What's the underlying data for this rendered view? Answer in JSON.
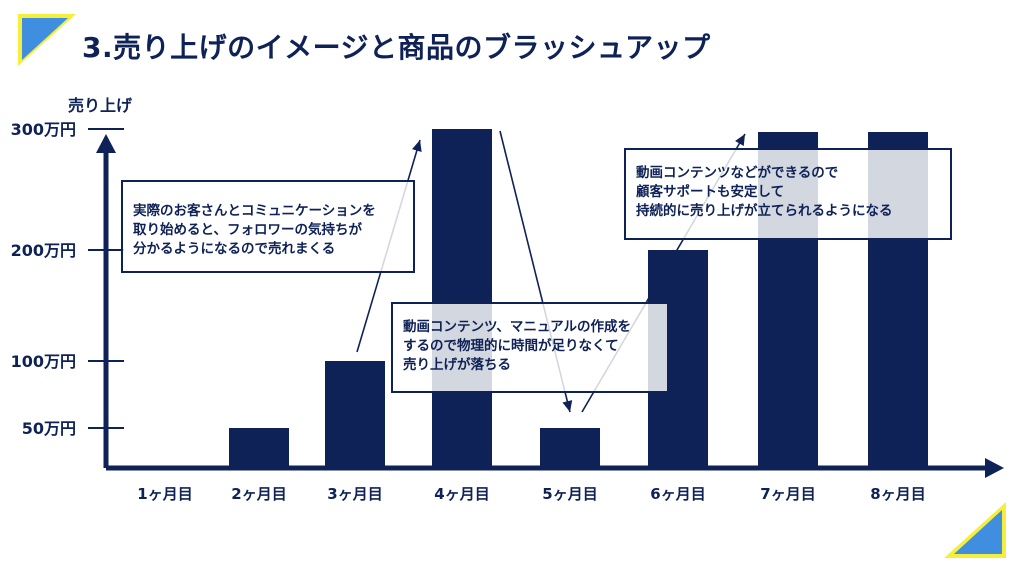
{
  "title": "3.売り上げのイメージと商品のブラッシュアップ",
  "colors": {
    "navy": "#0f2257",
    "accent_blue": "#3f8ee0",
    "accent_yellow": "#f5ef3c"
  },
  "callouts": [
    {
      "lines": [
        "実際のお客さんとコミュニケーションを",
        "取り始めると、フォロワーの気持ちが",
        "分かるようになるので売れまくる"
      ]
    },
    {
      "lines": [
        "動画コンテンツ、マニュアルの作成を",
        "するので物理的に時間が足りなくて",
        "売り上げが落ちる"
      ]
    },
    {
      "lines": [
        "動画コンテンツなどができるので",
        "顧客サポートも安定して",
        "持続的に売り上げが立てられるようになる"
      ]
    }
  ],
  "chart_data": {
    "type": "bar",
    "ylabel": "売り上げ",
    "categories": [
      "1ヶ月目",
      "2ヶ月目",
      "3ヶ月目",
      "4ヶ月目",
      "5ヶ月目",
      "6ヶ月目",
      "7ヶ月目",
      "8ヶ月目"
    ],
    "values": [
      0,
      50,
      100,
      300,
      50,
      200,
      300,
      300
    ],
    "unit": "万円",
    "y_ticks": [
      {
        "value": 50,
        "label": "50万円"
      },
      {
        "value": 100,
        "label": "100万円"
      },
      {
        "value": 200,
        "label": "200万円"
      },
      {
        "value": 300,
        "label": "300万円"
      }
    ],
    "ylim": [
      0,
      300
    ],
    "grid": false,
    "legend": "none"
  }
}
